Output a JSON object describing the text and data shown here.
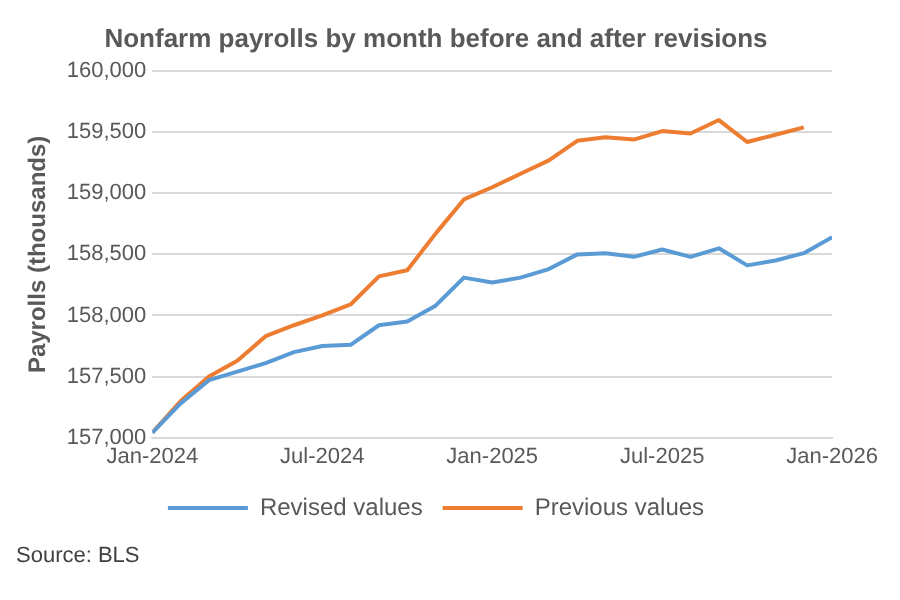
{
  "chart_data": {
    "type": "line",
    "title": "Nonfarm payrolls by month before and after revisions",
    "ylabel": "Payrolls (thousands)",
    "annotations": [
      "Source: BLS"
    ],
    "x": [
      "2024-01",
      "2024-02",
      "2024-03",
      "2024-04",
      "2024-05",
      "2024-06",
      "2024-07",
      "2024-08",
      "2024-09",
      "2024-10",
      "2024-11",
      "2024-12",
      "2025-01",
      "2025-02",
      "2025-03",
      "2025-04",
      "2025-05",
      "2025-06",
      "2025-07",
      "2025-08",
      "2025-09",
      "2025-10",
      "2025-11",
      "2025-12",
      "2026-01"
    ],
    "series": [
      {
        "name": "Revised values",
        "color": "#5b9bd5",
        "values": [
          157040,
          157280,
          157470,
          157540,
          157610,
          157700,
          157750,
          157760,
          157920,
          157950,
          158080,
          158310,
          158270,
          158310,
          158380,
          158500,
          158510,
          158480,
          158540,
          158480,
          158550,
          158410,
          158450,
          158510,
          158640
        ]
      },
      {
        "name": "Previous values",
        "color": "#ed7d31",
        "values": [
          157040,
          157300,
          157500,
          157630,
          157830,
          157920,
          158000,
          158090,
          158320,
          158370,
          158670,
          158950,
          159050,
          159160,
          159270,
          159430,
          159460,
          159440,
          159510,
          159490,
          159600,
          159420,
          159480,
          159540,
          null
        ]
      }
    ],
    "xlim": [
      "2024-01",
      "2026-01"
    ],
    "xticks": [
      {
        "value": "2024-01",
        "label": "Jan-2024"
      },
      {
        "value": "2024-07",
        "label": "Jul-2024"
      },
      {
        "value": "2025-01",
        "label": "Jan-2025"
      },
      {
        "value": "2025-07",
        "label": "Jul-2025"
      },
      {
        "value": "2026-01",
        "label": "Jan-2026"
      }
    ],
    "ylim": [
      157000,
      160000
    ],
    "yticks": [
      {
        "value": 157000,
        "label": "157,000"
      },
      {
        "value": 157500,
        "label": "157,500"
      },
      {
        "value": 158000,
        "label": "158,000"
      },
      {
        "value": 158500,
        "label": "158,500"
      },
      {
        "value": 159000,
        "label": "159,000"
      },
      {
        "value": 159500,
        "label": "159,500"
      },
      {
        "value": 160000,
        "label": "160,000"
      }
    ],
    "grid": "y",
    "legend": "bottom",
    "marker": "none",
    "line_style": "solid"
  }
}
